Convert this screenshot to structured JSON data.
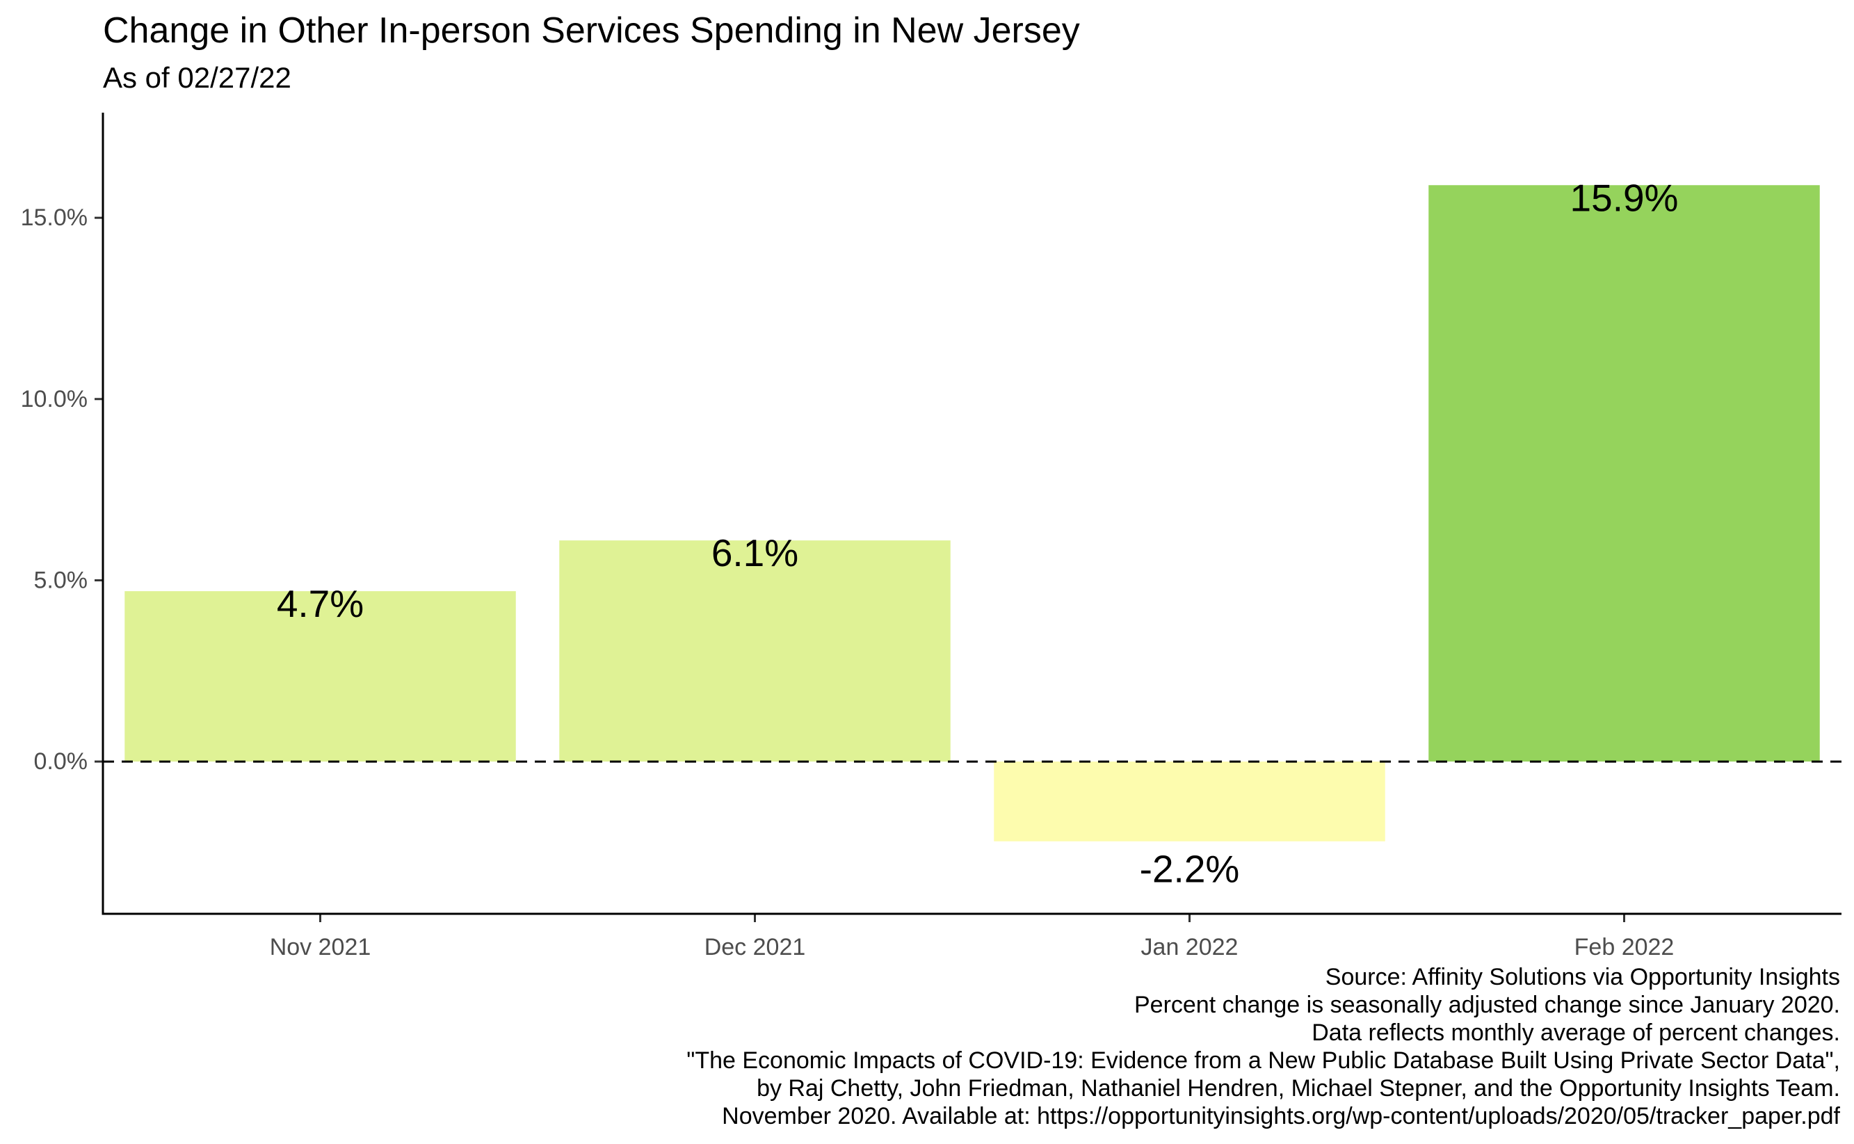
{
  "chart_data": {
    "type": "bar",
    "title": "Change in Other In-person Services Spending in New Jersey",
    "subtitle": "As of 02/27/22",
    "xlabel": "",
    "ylabel": "",
    "categories": [
      "Nov 2021",
      "Dec 2021",
      "Jan 2022",
      "Feb 2022"
    ],
    "values": [
      4.7,
      6.1,
      -2.2,
      15.9
    ],
    "data_labels": [
      "4.7%",
      "6.1%",
      "-2.2%",
      "15.9%"
    ],
    "bar_colors": [
      "#dff295",
      "#dff295",
      "#fdfcae",
      "#95d35c"
    ],
    "ylim": [
      -4.2,
      17.9
    ],
    "y_ticks": [
      0,
      5,
      10,
      15
    ],
    "y_tick_labels": [
      "0.0%",
      "5.0%",
      "10.0%",
      "15.0%"
    ],
    "reference_line": {
      "y": 0,
      "style": "dashed",
      "color": "#000000"
    },
    "grid": false,
    "legend": "none",
    "caption_lines": [
      "Source: Affinity Solutions via Opportunity Insights",
      "Percent change is seasonally adjusted change since January 2020.",
      "Data reflects monthly average of percent changes.",
      "\"The Economic Impacts of COVID-19: Evidence from a New Public Database Built Using Private Sector Data\",",
      "by Raj Chetty, John Friedman, Nathaniel Hendren, Michael Stepner, and the Opportunity Insights Team.",
      "November 2020. Available at: https://opportunityinsights.org/wp-content/uploads/2020/05/tracker_paper.pdf"
    ]
  }
}
